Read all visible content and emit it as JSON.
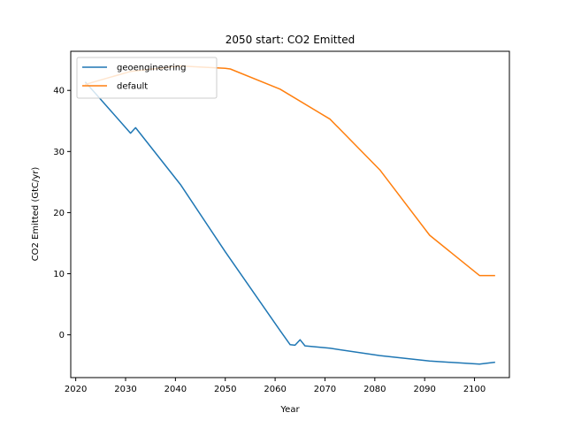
{
  "chart_data": {
    "type": "line",
    "title": "2050 start: CO2 Emitted",
    "xlabel": "Year",
    "ylabel": "CO2 Emitted (GtC/yr)",
    "xlim": [
      2019,
      2107
    ],
    "ylim": [
      -7,
      46.4
    ],
    "xticks": [
      2020,
      2030,
      2040,
      2050,
      2060,
      2070,
      2080,
      2090,
      2100
    ],
    "yticks": [
      0,
      10,
      20,
      30,
      40
    ],
    "grid": false,
    "legend_position": "top-left",
    "series": [
      {
        "name": "geoengineering",
        "color": "#1f77b4",
        "x": [
          2022,
          2031,
          2032,
          2041,
          2050,
          2061,
          2063,
          2064,
          2065,
          2066,
          2071,
          2081,
          2091,
          2101,
          2104
        ],
        "y": [
          41.3,
          33.0,
          33.9,
          24.6,
          13.6,
          0.7,
          -1.6,
          -1.7,
          -0.8,
          -1.8,
          -2.2,
          -3.4,
          -4.3,
          -4.8,
          -4.5
        ]
      },
      {
        "name": "default",
        "color": "#ff7f0e",
        "x": [
          2022,
          2031,
          2041,
          2050,
          2051,
          2061,
          2071,
          2081,
          2091,
          2101,
          2104
        ],
        "y": [
          41.0,
          43.1,
          44.0,
          43.6,
          43.5,
          40.2,
          35.3,
          27.0,
          16.3,
          9.7,
          9.7
        ]
      }
    ]
  }
}
